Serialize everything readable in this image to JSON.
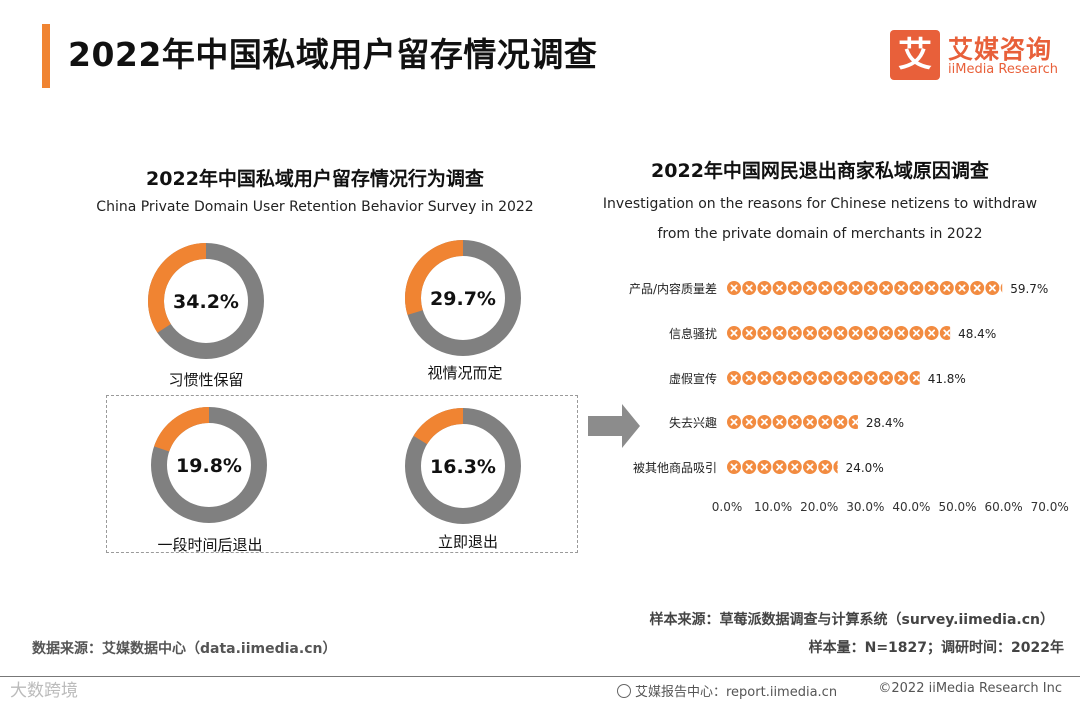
{
  "page": {
    "title": "2022年中国私域用户留存情况调查"
  },
  "logo": {
    "mark": "艾",
    "name_cn": "艾媒咨询",
    "name_en": "iiMedia Research",
    "brand_color": "#e8603a"
  },
  "colors": {
    "accent_orange": "#f08432",
    "gray": "#808080",
    "bullet_orange": "#f28b40"
  },
  "chart_data": [
    {
      "type": "pie",
      "title": "2022年中国私域用户留存情况行为调查",
      "subtitle": "China Private Domain User Retention Behavior Survey in 2022",
      "slices": [
        {
          "label": "习惯性保留",
          "value": 34.2,
          "display": "34.2%"
        },
        {
          "label": "视情况而定",
          "value": 29.7,
          "display": "29.7%"
        },
        {
          "label": "一段时间后退出",
          "value": 19.8,
          "display": "19.8%"
        },
        {
          "label": "立即退出",
          "value": 16.3,
          "display": "16.3%"
        }
      ]
    },
    {
      "type": "bar",
      "title": "2022年中国网民退出商家私域原因调查",
      "subtitle_line1": "Investigation on the reasons for Chinese netizens to withdraw",
      "subtitle_line2": "from the private domain of merchants in 2022",
      "categories": [
        "产品/内容质量差",
        "信息骚扰",
        "虚假宣传",
        "失去兴趣",
        "被其他商品吸引"
      ],
      "values": [
        59.7,
        48.4,
        41.8,
        28.4,
        24.0
      ],
      "value_labels": [
        "59.7%",
        "48.4%",
        "41.8%",
        "28.4%",
        "24.0%"
      ],
      "xlim": [
        0,
        70
      ],
      "x_ticks": [
        "0.0%",
        "10.0%",
        "20.0%",
        "30.0%",
        "40.0%",
        "50.0%",
        "60.0%",
        "70.0%"
      ]
    }
  ],
  "footer": {
    "sample_source": "样本来源：草莓派数据调查与计算系统（survey.iimedia.cn）",
    "sample_size": "样本量：N=1827；调研时间：2022年",
    "data_source": "数据来源：艾媒数据中心（data.iimedia.cn）",
    "report_center": "艾媒报告中心：report.iimedia.cn",
    "copyright": "©2022  iiMedia Research  Inc",
    "watermark": "大数跨境"
  }
}
